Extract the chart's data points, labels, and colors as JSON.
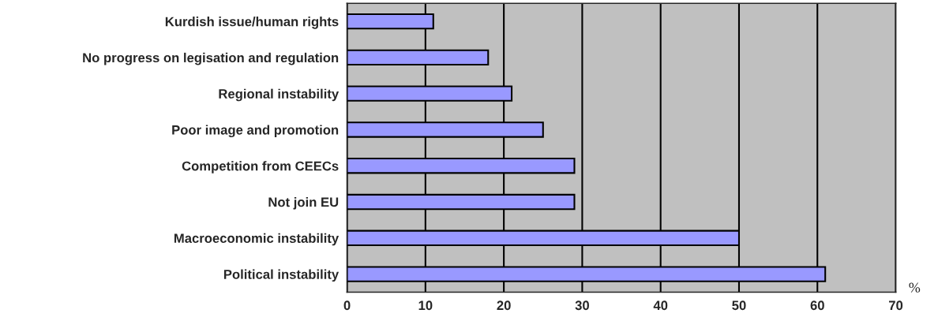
{
  "chart_data": {
    "type": "bar",
    "orientation": "horizontal",
    "categories": [
      "Kurdish issue/human rights",
      "No progress on legisation and regulation",
      "Regional instability",
      "Poor image and promotion",
      "Competition from CEECs",
      "Not join EU",
      "Macroeconomic instability",
      "Political instability"
    ],
    "values": [
      11,
      18,
      21,
      25,
      29,
      29,
      50,
      61
    ],
    "color": "#9999ff",
    "xlim": [
      0,
      70
    ],
    "xticks": [
      0,
      10,
      20,
      30,
      40,
      50,
      60,
      70
    ],
    "grid": "x",
    "annotations": [
      "%"
    ]
  }
}
